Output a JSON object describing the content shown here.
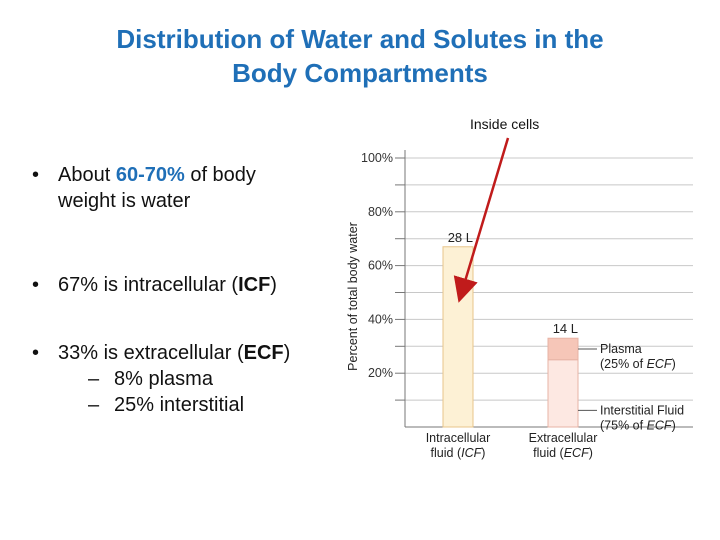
{
  "title": {
    "line1": "Distribution of Water and Solutes in the",
    "line2": "Body Compartments"
  },
  "bullets": {
    "b1_prefix": "About ",
    "b1_highlight": "60-70%",
    "b1_suffix": " of body",
    "b1_line2": "weight is water",
    "b2_prefix": "67% is intracellular (",
    "b2_bold": "ICF",
    "b2_suffix": ")",
    "b3_prefix": "33%  is extracellular (",
    "b3_bold": "ECF",
    "b3_suffix": ")",
    "sub1": "8% plasma",
    "sub2": "25% interstitial",
    "bullet_char": "•",
    "dash_char": "–"
  },
  "annotation": {
    "inside_cells": "Inside cells"
  },
  "colors": {
    "title_blue": "#1f6fb7",
    "icf_fill": "#fdf1d5",
    "icf_stroke": "#e8c58a",
    "plasma_fill": "#f6c6b8",
    "interstitial_fill": "#fde8e2",
    "arrow_red": "#c01b1b",
    "grid": "#c8c8c8"
  },
  "chart_data": {
    "type": "bar",
    "ylabel": "Percent of total body water",
    "ylim": [
      0,
      100
    ],
    "yticks": [
      20,
      40,
      60,
      80,
      100
    ],
    "yticklabels": [
      "20%",
      "40%",
      "60%",
      "80%",
      "100%"
    ],
    "grid": true,
    "bars": [
      {
        "label_line1": "Intracellular",
        "label_line2_pre": "fluid (",
        "label_line2_it": "ICF",
        "label_line2_post": ")",
        "value_label": "28 L",
        "segments": [
          {
            "name": "ICF",
            "value": 67,
            "fill": "#fdf1d5"
          }
        ]
      },
      {
        "label_line1": "Extracellular",
        "label_line2_pre": "fluid (",
        "label_line2_it": "ECF",
        "label_line2_post": ")",
        "value_label": "14 L",
        "segments": [
          {
            "name": "Interstitial Fluid",
            "value": 25,
            "fill": "#fde8e2"
          },
          {
            "name": "Plasma",
            "value": 8,
            "fill": "#f6c6b8"
          }
        ]
      }
    ],
    "annotations": [
      {
        "line1": "Plasma",
        "line2_pre": "(25% of ",
        "line2_it": "ECF",
        "line2_post": ")"
      },
      {
        "line1": "Interstitial Fluid",
        "line2_pre": "(75% of ",
        "line2_it": "ECF",
        "line2_post": ")"
      }
    ]
  }
}
